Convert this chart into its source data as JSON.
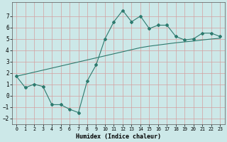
{
  "x": [
    0,
    1,
    2,
    3,
    4,
    5,
    6,
    7,
    8,
    9,
    10,
    11,
    12,
    13,
    14,
    15,
    16,
    17,
    18,
    19,
    20,
    21,
    22,
    23
  ],
  "y_curve": [
    1.7,
    0.7,
    1.0,
    0.8,
    -0.8,
    -0.8,
    -1.2,
    -1.5,
    1.3,
    2.7,
    5.0,
    6.5,
    7.5,
    6.5,
    7.0,
    5.9,
    6.2,
    6.2,
    5.2,
    4.9,
    5.0,
    5.5,
    5.5,
    5.2
  ],
  "y_linear": [
    1.7,
    1.88,
    2.06,
    2.24,
    2.42,
    2.6,
    2.78,
    2.96,
    3.14,
    3.32,
    3.5,
    3.68,
    3.86,
    4.04,
    4.22,
    4.35,
    4.45,
    4.55,
    4.65,
    4.73,
    4.8,
    4.9,
    4.98,
    5.05
  ],
  "line_color": "#2d7a6e",
  "bg_color": "#cce8e8",
  "grid_color": "#e8c8c8",
  "xlabel": "Humidex (Indice chaleur)",
  "xlim": [
    -0.5,
    23.5
  ],
  "ylim": [
    -2.5,
    8.2
  ],
  "yticks": [
    -2,
    -1,
    0,
    1,
    2,
    3,
    4,
    5,
    6,
    7
  ],
  "xticks": [
    0,
    1,
    2,
    3,
    4,
    5,
    6,
    7,
    8,
    9,
    10,
    11,
    12,
    13,
    14,
    15,
    16,
    17,
    18,
    19,
    20,
    21,
    22,
    23
  ]
}
